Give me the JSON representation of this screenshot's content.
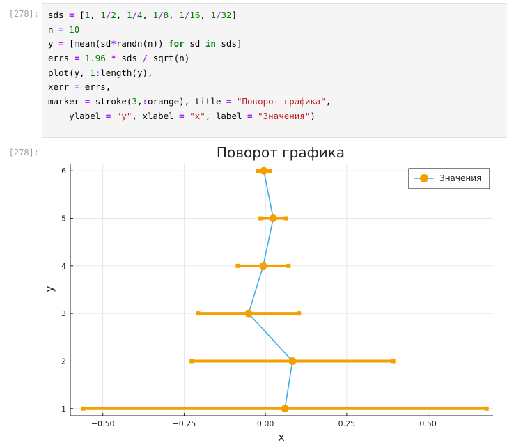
{
  "input_cell": {
    "prompt": "[278]:",
    "lines": [
      [
        [
          "text",
          "sds "
        ],
        [
          "op",
          "="
        ],
        [
          "text",
          " ["
        ],
        [
          "num",
          "1"
        ],
        [
          "text",
          ", "
        ],
        [
          "num",
          "1"
        ],
        [
          "op",
          "/"
        ],
        [
          "num",
          "2"
        ],
        [
          "text",
          ", "
        ],
        [
          "num",
          "1"
        ],
        [
          "op",
          "/"
        ],
        [
          "num",
          "4"
        ],
        [
          "text",
          ", "
        ],
        [
          "num",
          "1"
        ],
        [
          "op",
          "/"
        ],
        [
          "num",
          "8"
        ],
        [
          "text",
          ", "
        ],
        [
          "num",
          "1"
        ],
        [
          "op",
          "/"
        ],
        [
          "num",
          "16"
        ],
        [
          "text",
          ", "
        ],
        [
          "num",
          "1"
        ],
        [
          "op",
          "/"
        ],
        [
          "num",
          "32"
        ],
        [
          "text",
          "]"
        ]
      ],
      [
        [
          "text",
          "n "
        ],
        [
          "op",
          "="
        ],
        [
          "text",
          " "
        ],
        [
          "num",
          "10"
        ]
      ],
      [
        [
          "text",
          "y "
        ],
        [
          "op",
          "="
        ],
        [
          "text",
          " [mean(sd"
        ],
        [
          "op",
          "*"
        ],
        [
          "text",
          "randn(n)) "
        ],
        [
          "kw",
          "for"
        ],
        [
          "text",
          " sd "
        ],
        [
          "kw",
          "in"
        ],
        [
          "text",
          " sds]"
        ]
      ],
      [
        [
          "text",
          "errs "
        ],
        [
          "op",
          "="
        ],
        [
          "text",
          " "
        ],
        [
          "num",
          "1.96"
        ],
        [
          "text",
          " "
        ],
        [
          "op",
          "*"
        ],
        [
          "text",
          " sds "
        ],
        [
          "op",
          "/"
        ],
        [
          "text",
          " sqrt(n)"
        ]
      ],
      [
        [
          "text",
          "plot(y, "
        ],
        [
          "num",
          "1"
        ],
        [
          "op",
          ":"
        ],
        [
          "text",
          "length(y),"
        ]
      ],
      [
        [
          "text",
          "xerr "
        ],
        [
          "op",
          "="
        ],
        [
          "text",
          " errs,"
        ]
      ],
      [
        [
          "text",
          "marker "
        ],
        [
          "op",
          "="
        ],
        [
          "text",
          " stroke("
        ],
        [
          "num",
          "3"
        ],
        [
          "text",
          ","
        ],
        [
          "op",
          ":"
        ],
        [
          "text",
          "orange), title "
        ],
        [
          "op",
          "="
        ],
        [
          "text",
          " "
        ],
        [
          "str",
          "\"Поворот графика\""
        ],
        [
          "text",
          ","
        ]
      ],
      [
        [
          "text",
          "    ylabel "
        ],
        [
          "op",
          "="
        ],
        [
          "text",
          " "
        ],
        [
          "str",
          "\"y\""
        ],
        [
          "text",
          ", xlabel "
        ],
        [
          "op",
          "="
        ],
        [
          "text",
          " "
        ],
        [
          "str",
          "\"x\""
        ],
        [
          "text",
          ", label "
        ],
        [
          "op",
          "="
        ],
        [
          "text",
          " "
        ],
        [
          "str",
          "\"Значения\""
        ],
        [
          "text",
          ")"
        ]
      ]
    ]
  },
  "output_cell": {
    "prompt": "[278]:"
  },
  "chart_data": {
    "type": "line",
    "title": "Поворот графика",
    "xlabel": "x",
    "ylabel": "y",
    "xlim": [
      -0.6,
      0.7
    ],
    "ylim": [
      0.85,
      6.15
    ],
    "xticks": [
      -0.5,
      -0.25,
      0.0,
      0.25,
      0.5
    ],
    "xtick_labels": [
      "−0.50",
      "−0.25",
      "0.00",
      "0.25",
      "0.50"
    ],
    "yticks": [
      1,
      2,
      3,
      4,
      5,
      6
    ],
    "ytick_labels": [
      "1",
      "2",
      "3",
      "4",
      "5",
      "6"
    ],
    "grid": true,
    "legend_position": "top-right",
    "series": [
      {
        "name": "Значения",
        "line_color": "#3daee9",
        "marker_color": "#f5a000",
        "y": [
          1,
          2,
          3,
          4,
          5,
          6
        ],
        "x": [
          0.06,
          0.083,
          -0.052,
          -0.007,
          0.024,
          -0.005
        ],
        "xerr": [
          0.62,
          0.31,
          0.155,
          0.078,
          0.039,
          0.019
        ]
      }
    ]
  }
}
